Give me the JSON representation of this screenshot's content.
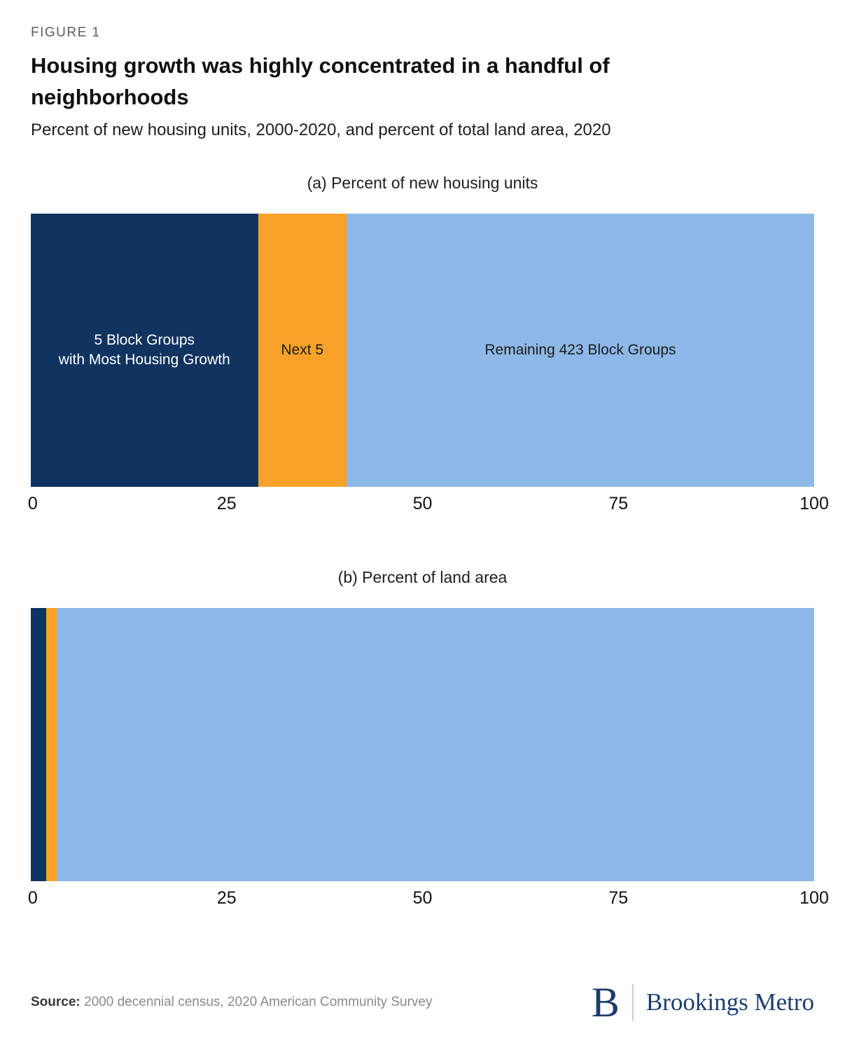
{
  "figure": {
    "eyebrow": "FIGURE 1",
    "title": "Housing growth was highly concentrated in a handful of neighborhoods",
    "subtitle": "Percent of new housing units, 2000-2020, and percent of total land area, 2020"
  },
  "colors": {
    "navy": "#103360",
    "orange": "#f8a22a",
    "light_blue": "#8db8e8",
    "brookings_navy": "#1c3d6e"
  },
  "chart_data": [
    {
      "type": "bar",
      "orientation": "horizontal-stacked",
      "title": "(a) Percent of new housing units",
      "xlabel": "",
      "ylabel": "",
      "xlim": [
        0,
        100
      ],
      "ticks": [
        0,
        25,
        50,
        75,
        100
      ],
      "segments": [
        {
          "name": "top-5-block-groups",
          "label_lines": [
            "5 Block Groups",
            "with Most Housing Growth"
          ],
          "value": 29,
          "color": "#103360",
          "label_color": "#ffffff"
        },
        {
          "name": "next-5",
          "label_lines": [
            "Next 5"
          ],
          "value": 11.3,
          "color": "#f8a22a",
          "label_color": "#1b1b1b"
        },
        {
          "name": "remaining-423-block-groups",
          "label_lines": [
            "Remaining 423 Block Groups"
          ],
          "value": 59.7,
          "color": "#8db8e8",
          "label_color": "#1b1b1b"
        }
      ]
    },
    {
      "type": "bar",
      "orientation": "horizontal-stacked",
      "title": "(b) Percent of land area",
      "xlabel": "",
      "ylabel": "",
      "xlim": [
        0,
        100
      ],
      "ticks": [
        0,
        25,
        50,
        75,
        100
      ],
      "segments": [
        {
          "name": "top-5-block-groups",
          "label_lines": [],
          "value": 2,
          "color": "#103360",
          "label_color": "#ffffff"
        },
        {
          "name": "next-5",
          "label_lines": [],
          "value": 1.3,
          "color": "#f8a22a",
          "label_color": "#1b1b1b"
        },
        {
          "name": "remaining-423-block-groups",
          "label_lines": [],
          "value": 96.7,
          "color": "#8db8e8",
          "label_color": "#1b1b1b"
        }
      ]
    }
  ],
  "footer": {
    "source_label": "Source:",
    "source_text": "2000 decennial census, 2020 American Community Survey",
    "logo_initial": "B",
    "logo_text": "Brookings Metro"
  }
}
